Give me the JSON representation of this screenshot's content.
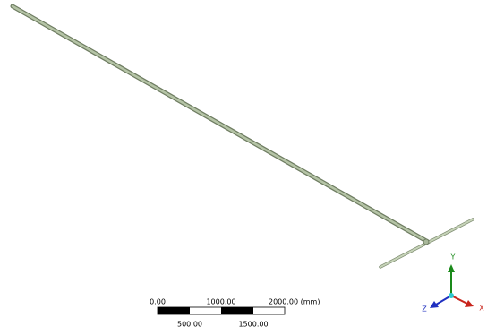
{
  "scale_bar": {
    "top_labels": [
      "0.00",
      "1000.00",
      "2000.00 (mm)"
    ],
    "bottom_labels": [
      "500.00",
      "1500.00"
    ]
  },
  "triad": {
    "labels": [
      "Y",
      "Z",
      "X"
    ]
  }
}
